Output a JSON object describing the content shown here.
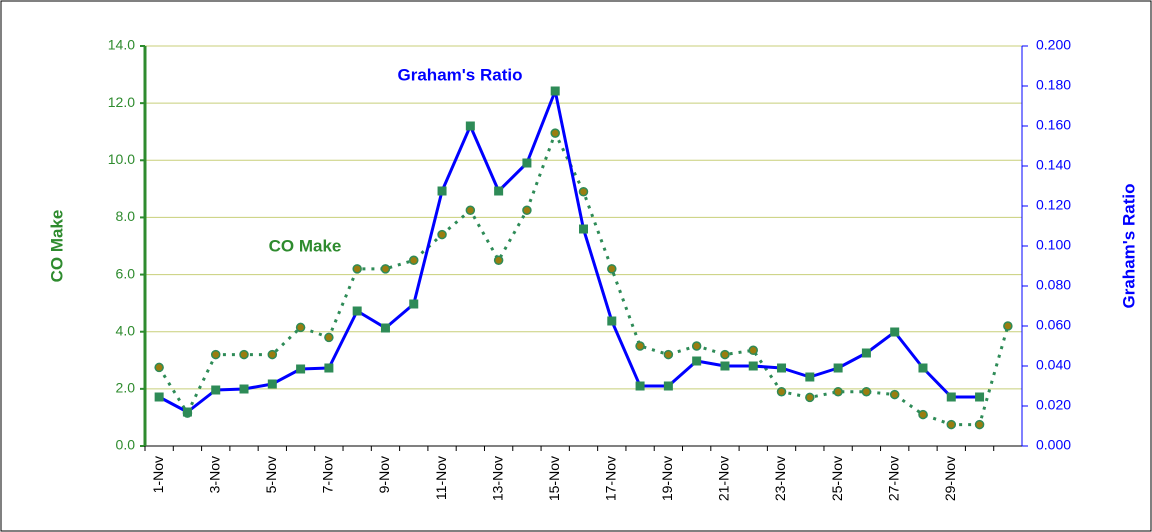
{
  "chart_data": {
    "type": "line",
    "categories": [
      "1-Nov",
      null,
      "3-Nov",
      null,
      "5-Nov",
      null,
      "7-Nov",
      null,
      "9-Nov",
      null,
      "11-Nov",
      null,
      "13-Nov",
      null,
      "15-Nov",
      null,
      "17-Nov",
      null,
      "19-Nov",
      null,
      "21-Nov",
      null,
      "23-Nov",
      null,
      "25-Nov",
      null,
      "27-Nov",
      null,
      "29-Nov",
      null,
      null
    ],
    "series": [
      {
        "name": "CO Make",
        "color": "#2e8b57",
        "marker_color": "#9a7d10",
        "axis": "y",
        "values": [
          2.75,
          1.15,
          3.2,
          3.2,
          3.2,
          4.15,
          3.8,
          6.2,
          6.2,
          6.5,
          7.4,
          8.25,
          6.5,
          8.25,
          10.95,
          8.9,
          6.2,
          3.5,
          3.2,
          3.5,
          3.2,
          3.35,
          1.9,
          1.7,
          1.9,
          1.9,
          1.8,
          1.1,
          0.75,
          0.75,
          4.2
        ]
      },
      {
        "name": "Graham's Ratio",
        "color": "#0000ff",
        "marker_color": "#2e8b57",
        "axis": "y2",
        "values": [
          0.0245,
          0.017,
          0.028,
          0.0285,
          0.031,
          0.0385,
          0.039,
          0.0675,
          0.059,
          0.071,
          0.1275,
          0.16,
          0.1275,
          0.1415,
          0.1775,
          0.1085,
          0.0625,
          0.03,
          0.03,
          0.0425,
          0.04,
          0.04,
          0.039,
          0.0345,
          0.039,
          0.0465,
          0.057,
          0.039,
          0.0245,
          0.0245,
          null
        ]
      }
    ],
    "ylabel": "CO Make",
    "y2label": "Graham's Ratio",
    "ylim": [
      0,
      14
    ],
    "yticks": [
      {
        "value": 0,
        "label": "0.0"
      },
      {
        "value": 2,
        "label": "2.0"
      },
      {
        "value": 4,
        "label": "4.0"
      },
      {
        "value": 6,
        "label": "6.0"
      },
      {
        "value": 8,
        "label": "8.0"
      },
      {
        "value": 10,
        "label": "10.0"
      },
      {
        "value": 12,
        "label": "12.0"
      },
      {
        "value": 14,
        "label": "14.0"
      }
    ],
    "y2lim": [
      0,
      0.2
    ],
    "y2ticks": [
      {
        "value": 0,
        "label": "0.000"
      },
      {
        "value": 0.02,
        "label": "0.020"
      },
      {
        "value": 0.04,
        "label": "0.040"
      },
      {
        "value": 0.06,
        "label": "0.060"
      },
      {
        "value": 0.08,
        "label": "0.080"
      },
      {
        "value": 0.1,
        "label": "0.100"
      },
      {
        "value": 0.12,
        "label": "0.120"
      },
      {
        "value": 0.14,
        "label": "0.140"
      },
      {
        "value": 0.16,
        "label": "0.160"
      },
      {
        "value": 0.18,
        "label": "0.180"
      },
      {
        "value": 0.2,
        "label": "0.200"
      }
    ],
    "grid": true,
    "grid_color": "#c8cf7a",
    "annotations": [
      "Graham's Ratio",
      "CO Make"
    ]
  }
}
